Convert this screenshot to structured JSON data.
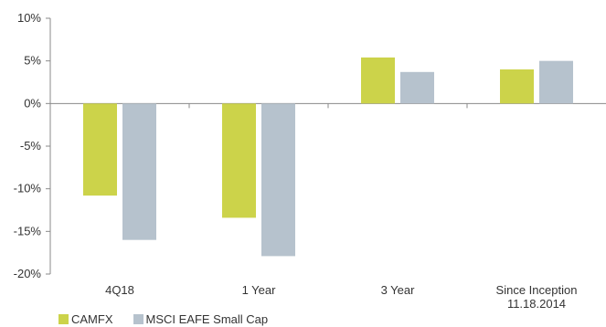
{
  "chart_data": {
    "type": "bar",
    "categories": [
      "4Q18",
      "1 Year",
      "3 Year",
      [
        "Since Inception",
        "11.18.2014"
      ]
    ],
    "series": [
      {
        "name": "CAMFX",
        "color": "#ccd34a",
        "values": [
          -10.8,
          -13.4,
          5.4,
          4.0
        ]
      },
      {
        "name": "MSCI EAFE Small Cap",
        "color": "#b6c2cd",
        "values": [
          -16.0,
          -17.9,
          3.7,
          5.0
        ]
      }
    ],
    "ylim": [
      -20,
      10
    ],
    "yticks": [
      10,
      5,
      0,
      -5,
      -10,
      -15,
      -20
    ],
    "ytick_labels": [
      "10%",
      "5%",
      "0%",
      "-5%",
      "-10%",
      "-15%",
      "-20%"
    ],
    "grid": false,
    "legend_position": "bottom-left"
  }
}
